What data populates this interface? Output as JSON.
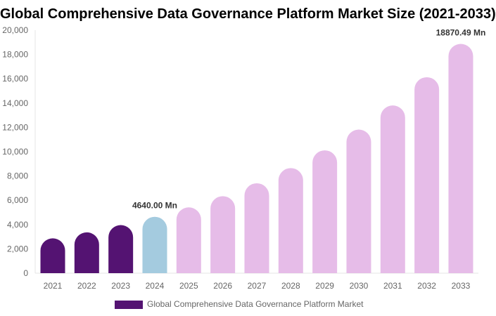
{
  "chart_data": {
    "type": "bar",
    "title": "Global Comprehensive Data Governance Platform Market Size (2021-2033)",
    "categories": [
      "2021",
      "2022",
      "2023",
      "2024",
      "2025",
      "2026",
      "2027",
      "2028",
      "2029",
      "2030",
      "2031",
      "2032",
      "2033"
    ],
    "series": [
      {
        "name": "Global Comprehensive Data Governance Platform Market",
        "values": [
          2870,
          3360,
          3960,
          4640,
          5420,
          6340,
          7400,
          8650,
          10110,
          11820,
          13810,
          16130,
          18870.49
        ]
      }
    ],
    "data_labels": {
      "3": "4640.00 Mn",
      "12": "18870.49 Mn"
    },
    "ylim": [
      0,
      20000
    ],
    "yticks": [
      "0",
      "2,000",
      "4,000",
      "6,000",
      "8,000",
      "10,000",
      "12,000",
      "14,000",
      "16,000",
      "18,000",
      "20,000"
    ],
    "colors": {
      "historical": "#541372",
      "current": "#a4cbdf",
      "forecast": "#e6bce8"
    },
    "bar_style": [
      "historical",
      "historical",
      "historical",
      "current",
      "forecast",
      "forecast",
      "forecast",
      "forecast",
      "forecast",
      "forecast",
      "forecast",
      "forecast",
      "forecast"
    ],
    "grid": false,
    "legend_position": "bottom"
  }
}
